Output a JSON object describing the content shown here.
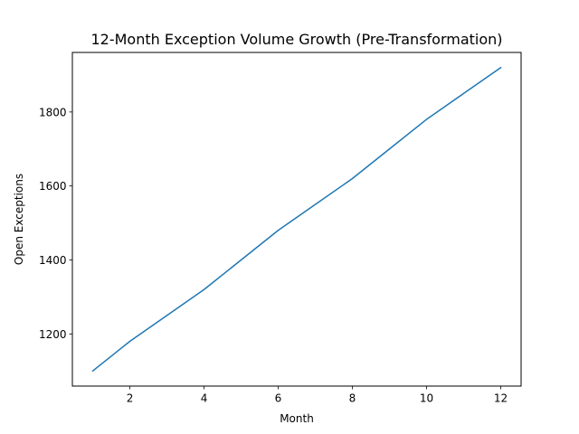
{
  "chart_data": {
    "type": "line",
    "title": "12-Month Exception Volume Growth (Pre-Transformation)",
    "xlabel": "Month",
    "ylabel": "Open Exceptions",
    "x": [
      1,
      2,
      3,
      4,
      5,
      6,
      7,
      8,
      9,
      10,
      11,
      12
    ],
    "series": [
      {
        "values": [
          1100,
          1180,
          1250,
          1320,
          1400,
          1480,
          1550,
          1620,
          1700,
          1780,
          1850,
          1920
        ],
        "color": "#1f77b4"
      }
    ],
    "xlim": [
      0.45,
      12.55
    ],
    "ylim": [
      1059,
      1961
    ],
    "xticks": [
      2,
      4,
      6,
      8,
      10,
      12
    ],
    "yticks": [
      1200,
      1400,
      1600,
      1800
    ],
    "grid": false,
    "legend": "none"
  }
}
